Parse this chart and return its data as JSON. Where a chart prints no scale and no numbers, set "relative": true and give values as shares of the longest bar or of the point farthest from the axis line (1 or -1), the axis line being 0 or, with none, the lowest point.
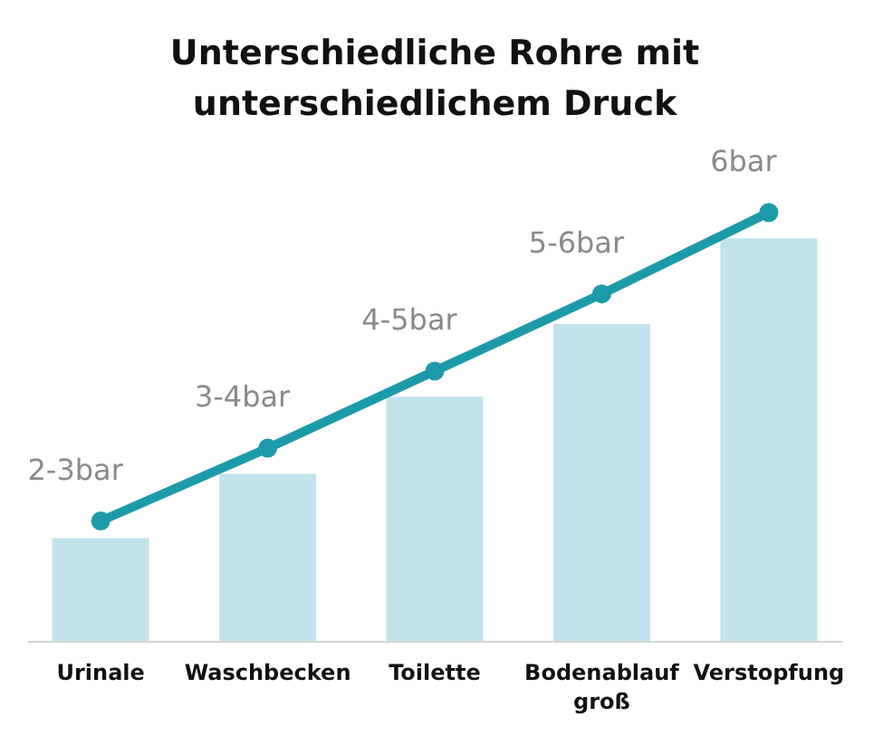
{
  "chart_data": {
    "type": "bar",
    "title": "Unterschiedliche Rohre mit unterschiedlichem Druck",
    "categories": [
      "Urinale",
      "Waschbecken",
      "Toilette",
      "Bodenablauf groß",
      "Verstopfung"
    ],
    "relative": true,
    "marker": "circle",
    "series": [
      {
        "color": "#c2e3ec",
        "values": [
          0.24,
          0.39,
          0.57,
          0.74,
          0.94
        ]
      },
      {
        "type": "line",
        "color": "#1d9aa9",
        "values": [
          0.28,
          0.45,
          0.63,
          0.81,
          1
        ]
      }
    ],
    "annotations": [
      {
        "text": "2-3bar",
        "x": "Urinale",
        "y": 0.28
      },
      {
        "text": "3-4bar",
        "x": "Waschbecken",
        "y": 0.45
      },
      {
        "text": "4-5bar",
        "x": "Toilette",
        "y": 0.63
      },
      {
        "text": "5-6bar",
        "x": "Bodenablauf groß",
        "y": 0.81
      },
      {
        "text": "6bar",
        "x": "Verstopfung",
        "y": 1
      }
    ]
  }
}
